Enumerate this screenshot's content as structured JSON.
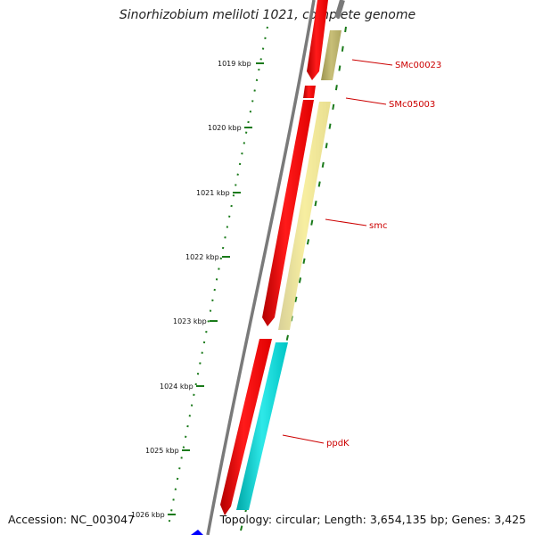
{
  "title": "Sinorhizobium meliloti 1021, complete genome",
  "footer": {
    "accession": "Accession: NC_003047",
    "summary": "Topology: circular; Length: 3,654,135 bp; Genes: 3,425"
  },
  "ticks": [
    {
      "label": "1019 kbp"
    },
    {
      "label": "1020 kbp"
    },
    {
      "label": "1021 kbp"
    },
    {
      "label": "1022 kbp"
    },
    {
      "label": "1023 kbp"
    },
    {
      "label": "1024 kbp"
    },
    {
      "label": "1025 kbp"
    },
    {
      "label": "1026 kbp"
    }
  ],
  "genes": [
    {
      "label": "SMc00023",
      "color": "#bdb76b"
    },
    {
      "label": "SMc05003",
      "color": "#ff0000"
    },
    {
      "label": "smc",
      "color": "#f0e68c"
    },
    {
      "label": "ppdK",
      "color": "#00cccc"
    }
  ],
  "colors": {
    "cds": "#ff0000",
    "backbone": "#808080",
    "tick": "#1a7a1a",
    "label": "#cc0000",
    "marker": "#0000ff"
  }
}
